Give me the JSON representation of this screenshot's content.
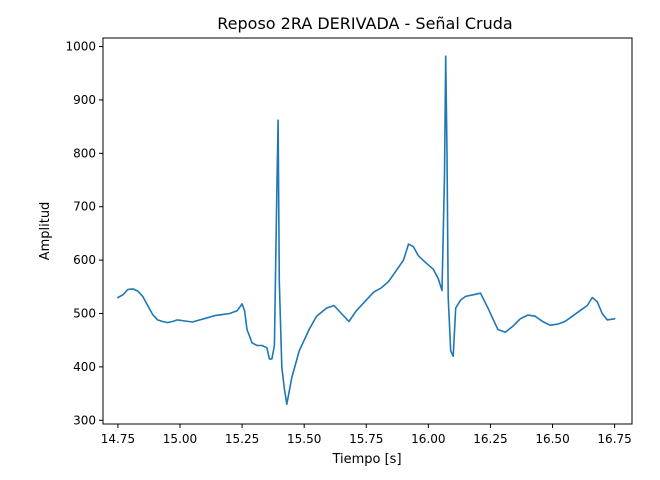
{
  "chart_data": {
    "type": "line",
    "title": "Reposo 2RA DERIVADA - Señal Cruda",
    "xlabel": "Tiempo [s]",
    "ylabel": "Amplitud",
    "xlim": [
      14.69,
      16.82
    ],
    "ylim": [
      293,
      1016
    ],
    "xticks": [
      14.75,
      15.0,
      15.25,
      15.5,
      15.75,
      16.0,
      16.25,
      16.5,
      16.75
    ],
    "xtick_labels": [
      "14.75",
      "15.00",
      "15.25",
      "15.50",
      "15.75",
      "16.00",
      "16.25",
      "16.50",
      "16.75"
    ],
    "yticks": [
      300,
      400,
      500,
      600,
      700,
      800,
      900,
      1000
    ],
    "ytick_labels": [
      "300",
      "400",
      "500",
      "600",
      "700",
      "800",
      "900",
      "1000"
    ],
    "grid": false,
    "series": [
      {
        "color": "#1f77b4",
        "x": [
          14.75,
          14.77,
          14.79,
          14.81,
          14.83,
          14.85,
          14.87,
          14.89,
          14.91,
          14.93,
          14.95,
          14.97,
          14.99,
          15.02,
          15.05,
          15.08,
          15.11,
          15.14,
          15.17,
          15.2,
          15.23,
          15.25,
          15.26,
          15.27,
          15.29,
          15.31,
          15.33,
          15.35,
          15.36,
          15.37,
          15.38,
          15.39,
          15.395,
          15.4,
          15.41,
          15.42,
          15.43,
          15.45,
          15.48,
          15.52,
          15.55,
          15.59,
          15.62,
          15.65,
          15.68,
          15.71,
          15.75,
          15.78,
          15.81,
          15.84,
          15.87,
          15.9,
          15.92,
          15.94,
          15.96,
          15.99,
          16.02,
          16.04,
          16.055,
          16.065,
          16.07,
          16.075,
          16.08,
          16.09,
          16.1,
          16.11,
          16.13,
          16.15,
          16.18,
          16.21,
          16.24,
          16.26,
          16.28,
          16.31,
          16.34,
          16.37,
          16.4,
          16.43,
          16.46,
          16.49,
          16.52,
          16.55,
          16.58,
          16.61,
          16.64,
          16.66,
          16.68,
          16.7,
          16.72,
          16.75
        ],
        "y": [
          530,
          535,
          545,
          546,
          542,
          532,
          515,
          498,
          488,
          485,
          483,
          485,
          488,
          486,
          484,
          488,
          492,
          496,
          498,
          500,
          505,
          518,
          505,
          470,
          445,
          440,
          440,
          436,
          415,
          415,
          440,
          725,
          862,
          560,
          400,
          360,
          330,
          380,
          430,
          470,
          495,
          510,
          515,
          500,
          485,
          505,
          525,
          540,
          548,
          560,
          580,
          600,
          630,
          625,
          608,
          595,
          583,
          565,
          543,
          760,
          982,
          800,
          530,
          430,
          420,
          510,
          525,
          532,
          535,
          538,
          510,
          490,
          470,
          465,
          476,
          490,
          497,
          495,
          485,
          478,
          480,
          485,
          495,
          505,
          515,
          530,
          522,
          500,
          488,
          490
        ]
      }
    ]
  }
}
